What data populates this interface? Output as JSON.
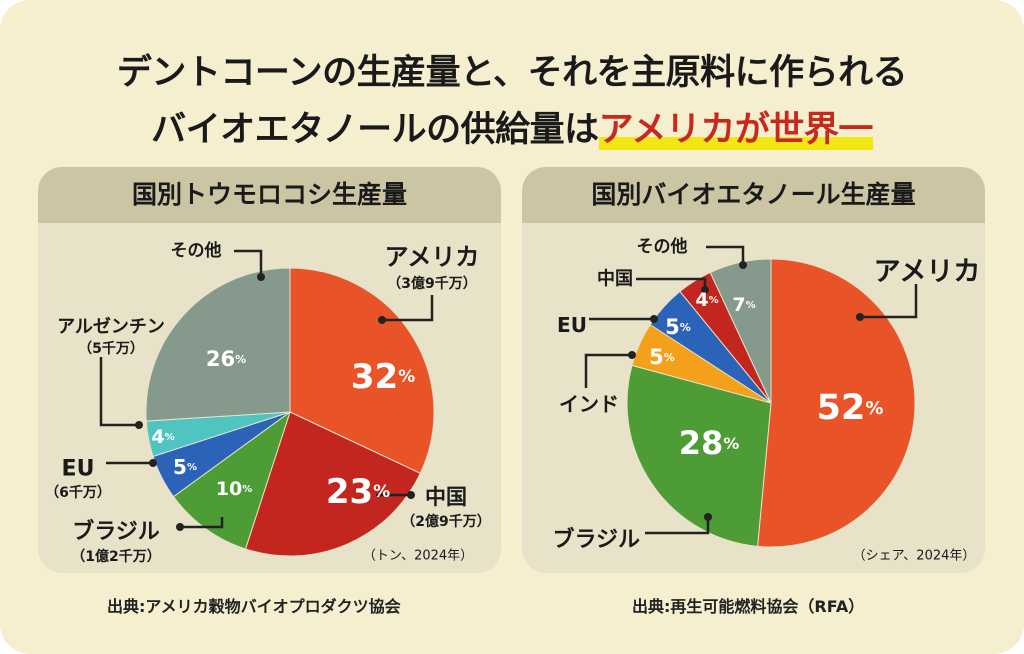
{
  "headline": {
    "line1": "デントコーンの生産量と、それを主原料に作られる",
    "line2_plain": "バイオエタノールの供給量は",
    "line2_accent": "アメリカが世界一"
  },
  "colors": {
    "background": "#f5efcf",
    "panel": "#e7e2c8",
    "panel_header": "#cbc5a3",
    "accent_red": "#c62a1f",
    "highlight_yellow": "#f3e615"
  },
  "chart_data": [
    {
      "type": "pie",
      "title": "国別トウモロコシ生産量",
      "note": "（トン、2024年）",
      "slices": [
        {
          "name": "アメリカ",
          "sub": "（3億9千万）",
          "value": 32,
          "color": "#e85428"
        },
        {
          "name": "中国",
          "sub": "（2億9千万）",
          "value": 23,
          "color": "#c3261f"
        },
        {
          "name": "ブラジル",
          "sub": "（1億2千万）",
          "value": 10,
          "color": "#4d9c35"
        },
        {
          "name": "EU",
          "sub": "（6千万）",
          "value": 5,
          "color": "#2a63b8"
        },
        {
          "name": "アルゼンチン",
          "sub": "（5千万）",
          "value": 4,
          "color": "#4fc4c0"
        },
        {
          "name": "その他",
          "sub": "",
          "value": 26,
          "color": "#86998d"
        }
      ]
    },
    {
      "type": "pie",
      "title": "国別バイオエタノール生産量",
      "note": "（シェア、2024年）",
      "slices": [
        {
          "name": "アメリカ",
          "sub": "",
          "value": 52,
          "color": "#e85428"
        },
        {
          "name": "ブラジル",
          "sub": "",
          "value": 28,
          "color": "#4d9c35"
        },
        {
          "name": "インド",
          "sub": "",
          "value": 5,
          "color": "#f5a01b"
        },
        {
          "name": "EU",
          "sub": "",
          "value": 5,
          "color": "#2a63b8"
        },
        {
          "name": "中国",
          "sub": "",
          "value": 4,
          "color": "#c3261f"
        },
        {
          "name": "その他",
          "sub": "",
          "value": 7,
          "color": "#86998d"
        }
      ]
    }
  ],
  "sources": {
    "left": "出典:アメリカ穀物バイオプロダクツ協会",
    "right": "出典:再生可能燃料協会（RFA）"
  }
}
